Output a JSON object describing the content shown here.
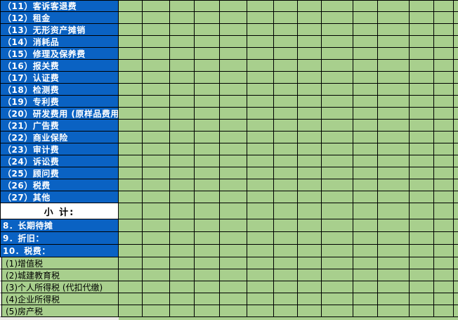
{
  "colors": {
    "row_fill_blue": "#0A62C3",
    "cell_fill_green": "#A8CF8D",
    "grid_line": "#000000",
    "subtotal_fill": "#FFFFFF",
    "blue_row_text": "#FFFFFF",
    "outside_margin": "#EDECE8"
  },
  "sheet": {
    "rows": [
      {
        "label": "（11）客诉客退费",
        "type": "expense"
      },
      {
        "label": "（12）租金",
        "type": "expense"
      },
      {
        "label": "（13）无形资产摊销",
        "type": "expense"
      },
      {
        "label": "（14）消耗品",
        "type": "expense"
      },
      {
        "label": "（15）修理及保养费",
        "type": "expense"
      },
      {
        "label": "（16）报关费",
        "type": "expense"
      },
      {
        "label": "（17）认证费",
        "type": "expense"
      },
      {
        "label": "（18）检测费",
        "type": "expense"
      },
      {
        "label": "（19）专利费",
        "type": "expense"
      },
      {
        "label": "（20）研发费用 (原样品费用)",
        "type": "expense"
      },
      {
        "label": "（21）广告费",
        "type": "expense"
      },
      {
        "label": "（22）商业保险",
        "type": "expense"
      },
      {
        "label": "（23）审计费",
        "type": "expense"
      },
      {
        "label": "（24）诉讼费",
        "type": "expense"
      },
      {
        "label": "（25）顾问费",
        "type": "expense"
      },
      {
        "label": "（26）税费",
        "type": "expense"
      },
      {
        "label": "（27）其他",
        "type": "expense"
      },
      {
        "label": "小  计:",
        "type": "subtotal"
      },
      {
        "label": "8．长期待摊",
        "type": "section"
      },
      {
        "label": "9．折旧：",
        "type": "section"
      },
      {
        "label": "10．税费：",
        "type": "section"
      },
      {
        "label": "(1)增值税",
        "type": "tax"
      },
      {
        "label": "(2)城建教育税",
        "type": "tax"
      },
      {
        "label": "(3)个人所得税 (代扣代缴)",
        "type": "tax"
      },
      {
        "label": "(4)企业所得税",
        "type": "tax"
      },
      {
        "label": "(5)房产税",
        "type": "tax"
      }
    ]
  }
}
